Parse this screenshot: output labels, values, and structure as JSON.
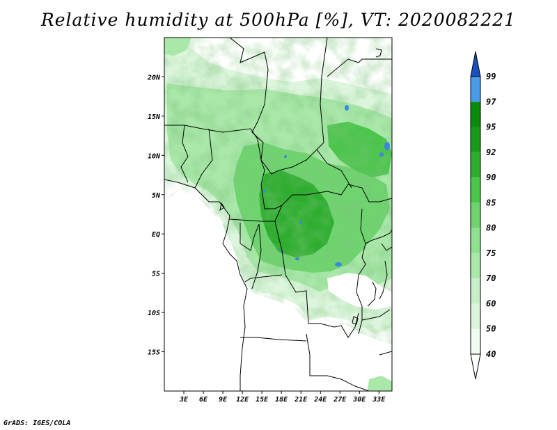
{
  "title": "Relative humidity at 500hPa [%], VT: 2020082221",
  "credit": "GrADS: IGES/COLA",
  "chart_data": {
    "type": "heatmap",
    "variable": "Relative humidity at 500hPa",
    "units": "%",
    "valid_time": "2020082221",
    "lon_range": [
      0,
      35
    ],
    "lat_range": [
      -20,
      25
    ],
    "lat_ticks": [
      {
        "value": 20,
        "label": "20N"
      },
      {
        "value": 15,
        "label": "15N"
      },
      {
        "value": 10,
        "label": "10N"
      },
      {
        "value": 5,
        "label": "5N"
      },
      {
        "value": 0,
        "label": "EQ"
      },
      {
        "value": -5,
        "label": "5S"
      },
      {
        "value": -10,
        "label": "10S"
      },
      {
        "value": -15,
        "label": "15S"
      }
    ],
    "lon_ticks": [
      {
        "value": 3,
        "label": "3E"
      },
      {
        "value": 6,
        "label": "6E"
      },
      {
        "value": 9,
        "label": "9E"
      },
      {
        "value": 12,
        "label": "12E"
      },
      {
        "value": 15,
        "label": "15E"
      },
      {
        "value": 18,
        "label": "18E"
      },
      {
        "value": 21,
        "label": "21E"
      },
      {
        "value": 24,
        "label": "24E"
      },
      {
        "value": 27,
        "label": "27E"
      },
      {
        "value": 30,
        "label": "30E"
      },
      {
        "value": 33,
        "label": "33E"
      }
    ],
    "colorbar": {
      "levels": [
        "40",
        "50",
        "60",
        "70",
        "75",
        "80",
        "85",
        "90",
        "92",
        "95",
        "97",
        "99"
      ],
      "colors": [
        "#f0fcf0",
        "#dcf5dc",
        "#c8efc8",
        "#aae8aa",
        "#8fe08f",
        "#6fd46f",
        "#4cc54c",
        "#2fad2f",
        "#1a9a1a",
        "#0a8a0a",
        "#4a9be8",
        "#2c72d8",
        "#1a4fbf"
      ]
    }
  },
  "colors": {
    "border": "#000000",
    "fill_base": "#c8efc8"
  }
}
